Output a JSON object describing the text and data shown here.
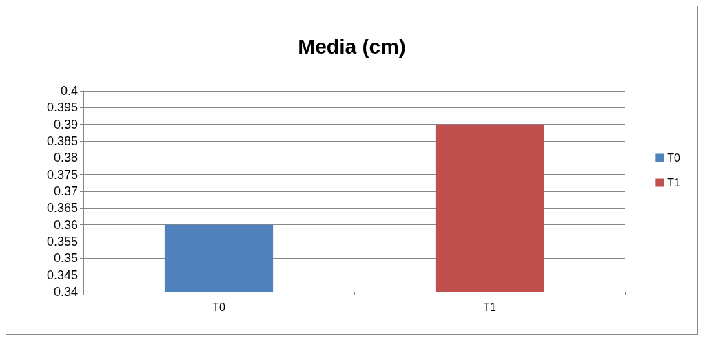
{
  "chart_data": {
    "type": "bar",
    "title": "Media (cm)",
    "categories": [
      "T0",
      "T1"
    ],
    "stacked": true,
    "series": [
      {
        "name": "T0",
        "color": "#4f81bd",
        "values": [
          0.36,
          null
        ]
      },
      {
        "name": "T1",
        "color": "#c0504d",
        "values": [
          null,
          0.39
        ]
      }
    ],
    "ylim": [
      0.34,
      0.4
    ],
    "yticks": [
      0.34,
      0.345,
      0.35,
      0.355,
      0.36,
      0.365,
      0.37,
      0.375,
      0.38,
      0.385,
      0.39,
      0.395,
      0.4
    ],
    "grid": "y",
    "legend": "right"
  }
}
